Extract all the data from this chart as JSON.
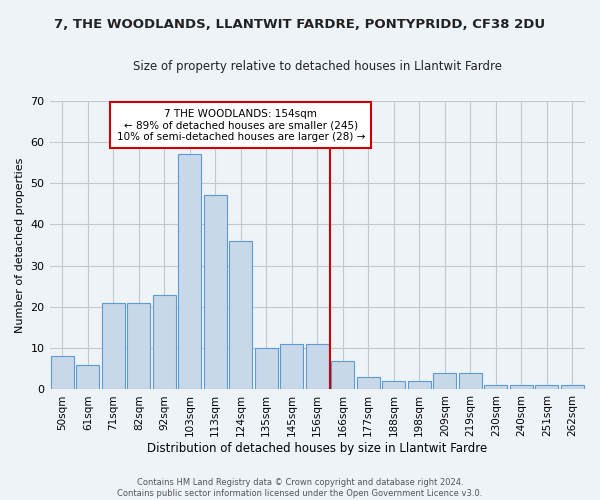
{
  "title": "7, THE WOODLANDS, LLANTWIT FARDRE, PONTYPRIDD, CF38 2DU",
  "subtitle": "Size of property relative to detached houses in Llantwit Fardre",
  "xlabel": "Distribution of detached houses by size in Llantwit Fardre",
  "ylabel": "Number of detached properties",
  "footer_line1": "Contains HM Land Registry data © Crown copyright and database right 2024.",
  "footer_line2": "Contains public sector information licensed under the Open Government Licence v3.0.",
  "bar_labels": [
    "50sqm",
    "61sqm",
    "71sqm",
    "82sqm",
    "92sqm",
    "103sqm",
    "113sqm",
    "124sqm",
    "135sqm",
    "145sqm",
    "156sqm",
    "166sqm",
    "177sqm",
    "188sqm",
    "198sqm",
    "209sqm",
    "219sqm",
    "230sqm",
    "240sqm",
    "251sqm",
    "262sqm"
  ],
  "bar_values": [
    8,
    6,
    21,
    21,
    23,
    57,
    47,
    36,
    10,
    11,
    11,
    7,
    3,
    2,
    2,
    4,
    4,
    1,
    1,
    1,
    1
  ],
  "bar_color": "#c8d8e8",
  "bar_edge_color": "#5b9bd5",
  "grid_color": "#c0c8d0",
  "background_color": "#eef3f8",
  "vline_x": 10.5,
  "vline_color": "#cc0000",
  "annotation_text": "7 THE WOODLANDS: 154sqm\n← 89% of detached houses are smaller (245)\n10% of semi-detached houses are larger (28) →",
  "annotation_box_color": "#ffffff",
  "annotation_box_edge": "#cc0000",
  "ylim": [
    0,
    70
  ],
  "yticks": [
    0,
    10,
    20,
    30,
    40,
    50,
    60,
    70
  ]
}
